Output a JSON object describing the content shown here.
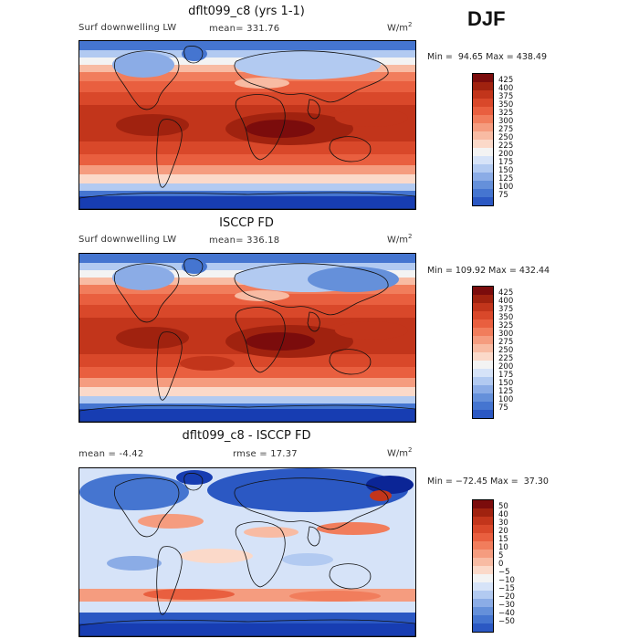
{
  "header": {
    "season": "DJF"
  },
  "colors": {
    "warm10": [
      "#fbe0d0",
      "#f9c8ae",
      "#f6ad8c",
      "#f2916c",
      "#ee7551",
      "#e95a3a",
      "#e04a2e",
      "#c53a22",
      "#a52819",
      "#800f0c"
    ],
    "cool10": [
      "#dbe8fa",
      "#bfd6f6",
      "#a1c1f1",
      "#82aaea",
      "#648fe1",
      "#4675d6",
      "#2c58c9",
      "#1b40b8",
      "#10279a",
      "#0a1070"
    ]
  },
  "panels": [
    {
      "title": "dflt099_c8 (yrs 1-1)",
      "left_label": "Surf downwelling LW",
      "stat_label": "mean=",
      "stat_value": "331.76",
      "units": "W/m",
      "units_sup": "2",
      "min_label": "Min =",
      "min_value": "94.65",
      "max_label": "Max =",
      "max_value": "438.49",
      "levels": [
        "425",
        "400",
        "375",
        "350",
        "325",
        "300",
        "275",
        "250",
        "225",
        "200",
        "175",
        "150",
        "125",
        "100",
        "75"
      ],
      "colors": [
        "#7b0c0c",
        "#a0220f",
        "#c2351b",
        "#d9482a",
        "#e95f3f",
        "#f17d5c",
        "#f59c7f",
        "#f8bba3",
        "#fbd9c9",
        "#f3f3f3",
        "#d6e3f8",
        "#b2caf1",
        "#8bacE6",
        "#6590da",
        "#4575d0",
        "#2b58c3",
        "#173db2",
        "#0b2596"
      ],
      "map_style": "abs"
    },
    {
      "title": "ISCCP FD",
      "left_label": "Surf downwelling LW",
      "stat_label": "mean=",
      "stat_value": "336.18",
      "units": "W/m",
      "units_sup": "2",
      "min_label": "Min =",
      "min_value": "109.92",
      "max_label": "Max =",
      "max_value": "432.44",
      "levels": [
        "425",
        "400",
        "375",
        "350",
        "325",
        "300",
        "275",
        "250",
        "225",
        "200",
        "175",
        "150",
        "125",
        "100",
        "75"
      ],
      "colors": [
        "#7b0c0c",
        "#a0220f",
        "#c2351b",
        "#d9482a",
        "#e95f3f",
        "#f17d5c",
        "#f59c7f",
        "#f8bba3",
        "#fbd9c9",
        "#f3f3f3",
        "#d6e3f8",
        "#b2caf1",
        "#8bacE6",
        "#6590da",
        "#4575d0",
        "#2b58c3",
        "#173db2",
        "#0b2596"
      ],
      "map_style": "abs"
    },
    {
      "title": "dflt099_c8 - ISCCP FD",
      "left_label": "mean =",
      "left_value": "-4.42",
      "stat_label": "rmse =",
      "stat_value": "17.37",
      "units": "W/m",
      "units_sup": "2",
      "min_label": "Min =",
      "min_value": "−72.45",
      "max_label": "Max =",
      "max_value": "37.30",
      "levels": [
        "50",
        "40",
        "30",
        "20",
        "15",
        "10",
        "5",
        "0",
        "−5",
        "−10",
        "−15",
        "−20",
        "−30",
        "−40",
        "−50"
      ],
      "colors": [
        "#7b0c0c",
        "#a0220f",
        "#c2351b",
        "#d9482a",
        "#e95f3f",
        "#f17d5c",
        "#f59c7f",
        "#f8bba3",
        "#fbd9c9",
        "#f3f3f3",
        "#d6e3f8",
        "#b2caf1",
        "#8bacE6",
        "#6590da",
        "#4575d0",
        "#2b58c3",
        "#173db2",
        "#0b2596"
      ],
      "map_style": "diff"
    }
  ]
}
